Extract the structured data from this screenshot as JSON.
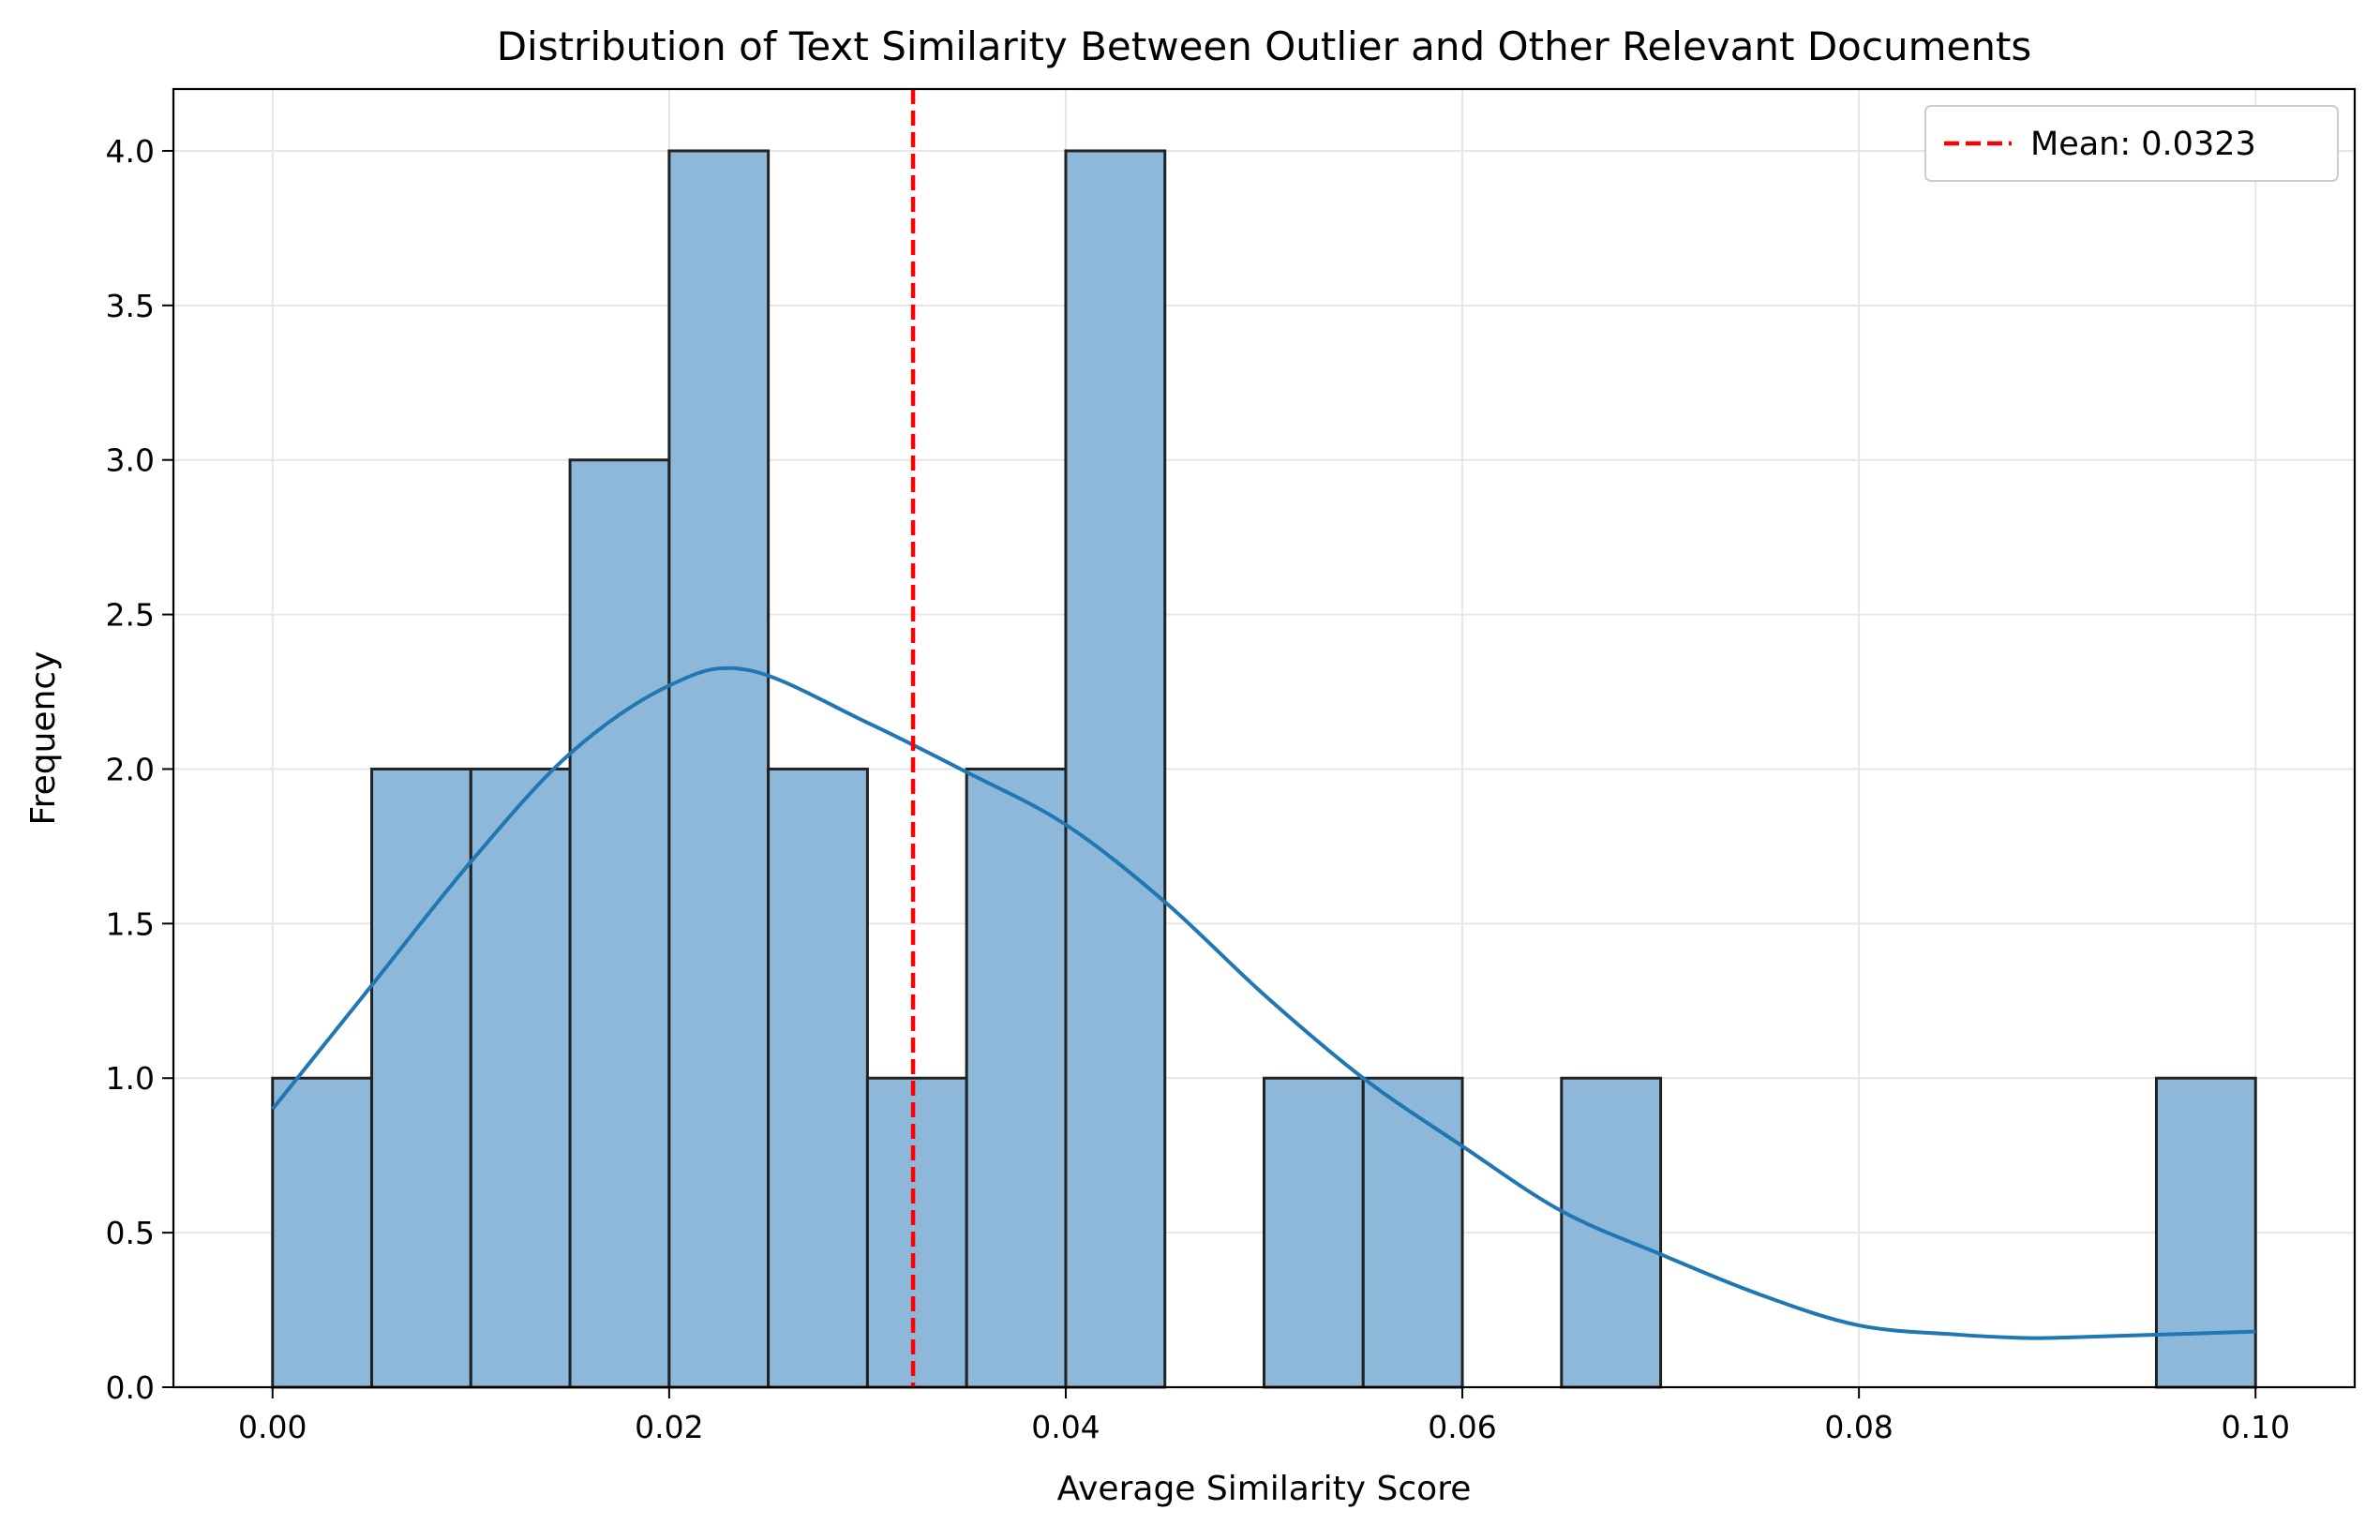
{
  "chart_data": {
    "type": "bar",
    "title": "Distribution of Text Similarity Between Outlier and Other Relevant Documents",
    "xlabel": "Average Similarity Score",
    "ylabel": "Frequency",
    "xlim": [
      -0.005,
      0.105
    ],
    "ylim": [
      0,
      4.2
    ],
    "x_ticks": [
      0.0,
      0.02,
      0.04,
      0.06,
      0.08,
      0.1
    ],
    "x_tick_labels": [
      "0.00",
      "0.02",
      "0.04",
      "0.06",
      "0.08",
      "0.10"
    ],
    "y_ticks": [
      0.0,
      0.5,
      1.0,
      1.5,
      2.0,
      2.5,
      3.0,
      3.5,
      4.0
    ],
    "y_tick_labels": [
      "0.0",
      "0.5",
      "1.0",
      "1.5",
      "2.0",
      "2.5",
      "3.0",
      "3.5",
      "4.0"
    ],
    "grid": true,
    "bins": [
      {
        "start": 0.0,
        "end": 0.005,
        "count": 1
      },
      {
        "start": 0.005,
        "end": 0.01,
        "count": 2
      },
      {
        "start": 0.01,
        "end": 0.015,
        "count": 2
      },
      {
        "start": 0.015,
        "end": 0.02,
        "count": 3
      },
      {
        "start": 0.02,
        "end": 0.025,
        "count": 4
      },
      {
        "start": 0.025,
        "end": 0.03,
        "count": 2
      },
      {
        "start": 0.03,
        "end": 0.035,
        "count": 1
      },
      {
        "start": 0.035,
        "end": 0.04,
        "count": 2
      },
      {
        "start": 0.04,
        "end": 0.045,
        "count": 4
      },
      {
        "start": 0.045,
        "end": 0.05,
        "count": 0
      },
      {
        "start": 0.05,
        "end": 0.055,
        "count": 1
      },
      {
        "start": 0.055,
        "end": 0.06,
        "count": 1
      },
      {
        "start": 0.06,
        "end": 0.065,
        "count": 0
      },
      {
        "start": 0.065,
        "end": 0.07,
        "count": 1
      },
      {
        "start": 0.07,
        "end": 0.075,
        "count": 0
      },
      {
        "start": 0.075,
        "end": 0.08,
        "count": 0
      },
      {
        "start": 0.08,
        "end": 0.085,
        "count": 0
      },
      {
        "start": 0.085,
        "end": 0.09,
        "count": 0
      },
      {
        "start": 0.09,
        "end": 0.095,
        "count": 0
      },
      {
        "start": 0.095,
        "end": 0.1,
        "count": 1
      }
    ],
    "kde": {
      "x": [
        0.0,
        0.005,
        0.01,
        0.015,
        0.02,
        0.024,
        0.03,
        0.035,
        0.04,
        0.045,
        0.05,
        0.055,
        0.06,
        0.065,
        0.07,
        0.075,
        0.08,
        0.085,
        0.088,
        0.09,
        0.095,
        0.1
      ],
      "y": [
        0.9,
        1.3,
        1.7,
        2.05,
        2.27,
        2.32,
        2.15,
        1.99,
        1.82,
        1.57,
        1.27,
        1.0,
        0.78,
        0.57,
        0.43,
        0.3,
        0.2,
        0.17,
        0.16,
        0.16,
        0.17,
        0.18
      ]
    },
    "mean_line": {
      "value": 0.0323,
      "label": "Mean: 0.0323"
    },
    "legend_position": "top-right",
    "colors": {
      "bar_fill": "#8db8d9",
      "bar_edge": "#222222",
      "kde_line": "#1f77b4",
      "mean_line": "#ff0000",
      "grid": "#e6e6e6"
    }
  }
}
